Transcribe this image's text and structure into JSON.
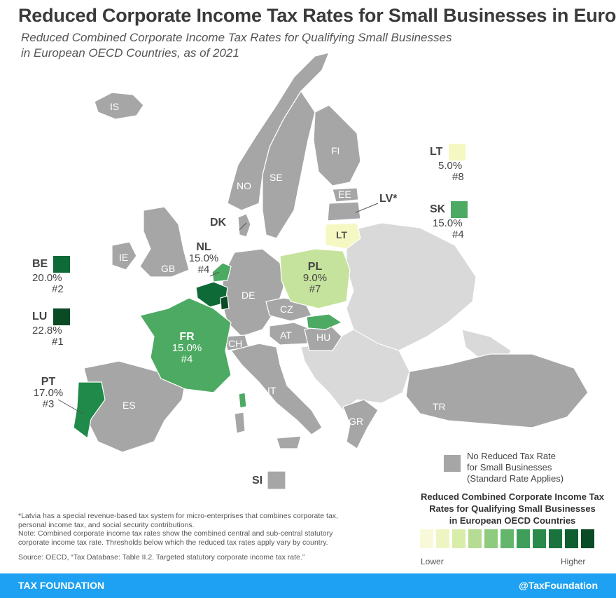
{
  "title": "Reduced Corporate Income Tax Rates for Small Businesses in Europe",
  "subtitle_line1": "Reduced Combined Corporate Income Tax Rates for Qualifying Small Businesses",
  "subtitle_line2": "in European OECD Countries, as of 2021",
  "colors": {
    "gray_no_rate": "#a6a6a6",
    "non_oecd": "#d9d9d9",
    "LT": "#f5f8c2",
    "PL": "#c6e39d",
    "FR_NL_SK": "#4daa62",
    "PT": "#1f8a49",
    "BE": "#0e6a36",
    "LU": "#0a4a25"
  },
  "countries": {
    "IS": "IS",
    "NO": "NO",
    "SE": "SE",
    "FI": "FI",
    "EE": "EE",
    "DK": "DK",
    "IE": "IE",
    "GB": "GB",
    "DE": "DE",
    "CZ": "CZ",
    "AT": "AT",
    "HU": "HU",
    "CH": "CH",
    "IT": "IT",
    "ES": "ES",
    "GR": "GR",
    "TR": "TR",
    "SI": "SI",
    "LT": "LT"
  },
  "labels": {
    "NL": {
      "code": "NL",
      "rate": "15.0%",
      "rank": "#4"
    },
    "PL": {
      "code": "PL",
      "rate": "9.0%",
      "rank": "#7"
    },
    "FR": {
      "code": "FR",
      "rate": "15.0%",
      "rank": "#4"
    },
    "BE": {
      "code": "BE",
      "rate": "20.0%",
      "rank": "#2"
    },
    "LU": {
      "code": "LU",
      "rate": "22.8%",
      "rank": "#1"
    },
    "PT": {
      "code": "PT",
      "rate": "17.0%",
      "rank": "#3"
    },
    "LT": {
      "code": "LT",
      "rate": "5.0%",
      "rank": "#8"
    },
    "SK": {
      "code": "SK",
      "rate": "15.0%",
      "rank": "#4"
    },
    "LV": {
      "code": "LV*"
    }
  },
  "legend": {
    "no_rate_line1": "No Reduced Tax Rate",
    "no_rate_line2": "for Small Businesses",
    "no_rate_line3": "(Standard Rate Applies)",
    "scale_title_line1": "Reduced Combined Corporate Income Tax",
    "scale_title_line2": "Rates for Qualifying Small Businesses",
    "scale_title_line3": "in European OECD Countries",
    "lower": "Lower",
    "higher": "Higher",
    "scale_colors": [
      "#f8f9d8",
      "#eef5c2",
      "#d9edaa",
      "#b6dc94",
      "#8fcb7e",
      "#64b66c",
      "#3f9f5a",
      "#2a8a4b",
      "#1a733c",
      "#0e5e30",
      "#0a4a25"
    ]
  },
  "notes": {
    "line1": "*Latvia has a special revenue-based tax system for micro-enterprises that combines corporate tax,",
    "line2": "personal income tax, and social security contributions.",
    "line3": "Note: Combined corporate income tax rates show the combined central and sub-central statutory",
    "line4": "corporate income tax rate. Thresholds below which the reduced tax rates apply vary by country.",
    "source": "Source: OECD, “Tax Database: Table II.2. Targeted statutory corporate income tax rate.”"
  },
  "footer": {
    "left": "TAX FOUNDATION",
    "right": "@TaxFoundation"
  }
}
